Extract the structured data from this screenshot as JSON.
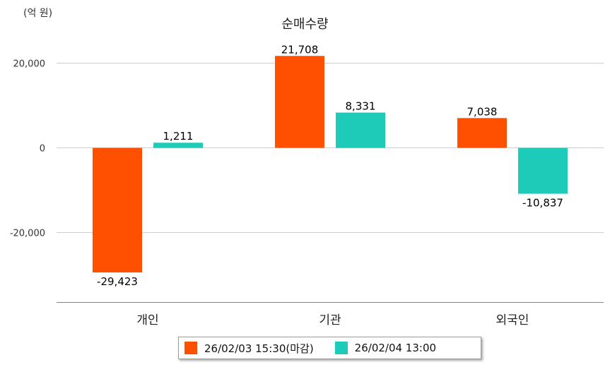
{
  "chart_data": {
    "type": "bar",
    "title": "순매수량",
    "unit_label": "(억 원)",
    "categories": [
      "개인",
      "기관",
      "외국인"
    ],
    "series": [
      {
        "name": "26/02/03 15:30(마감)",
        "color": "#ff5000",
        "values": [
          -29423,
          21708,
          7038
        ]
      },
      {
        "name": "26/02/04 13:00",
        "color": "#1ccbb8",
        "values": [
          1211,
          8331,
          -10837
        ]
      }
    ],
    "data_labels": [
      [
        "-29,423",
        "21,708",
        "7,038"
      ],
      [
        "1,211",
        "8,331",
        "-10,837"
      ]
    ],
    "yticks": [
      {
        "value": 20000,
        "label": "20,000"
      },
      {
        "value": 0,
        "label": "0"
      },
      {
        "value": -20000,
        "label": "-20,000"
      }
    ],
    "ylim": [
      -36500,
      23600
    ],
    "grid": true,
    "legend_position": "bottom"
  }
}
